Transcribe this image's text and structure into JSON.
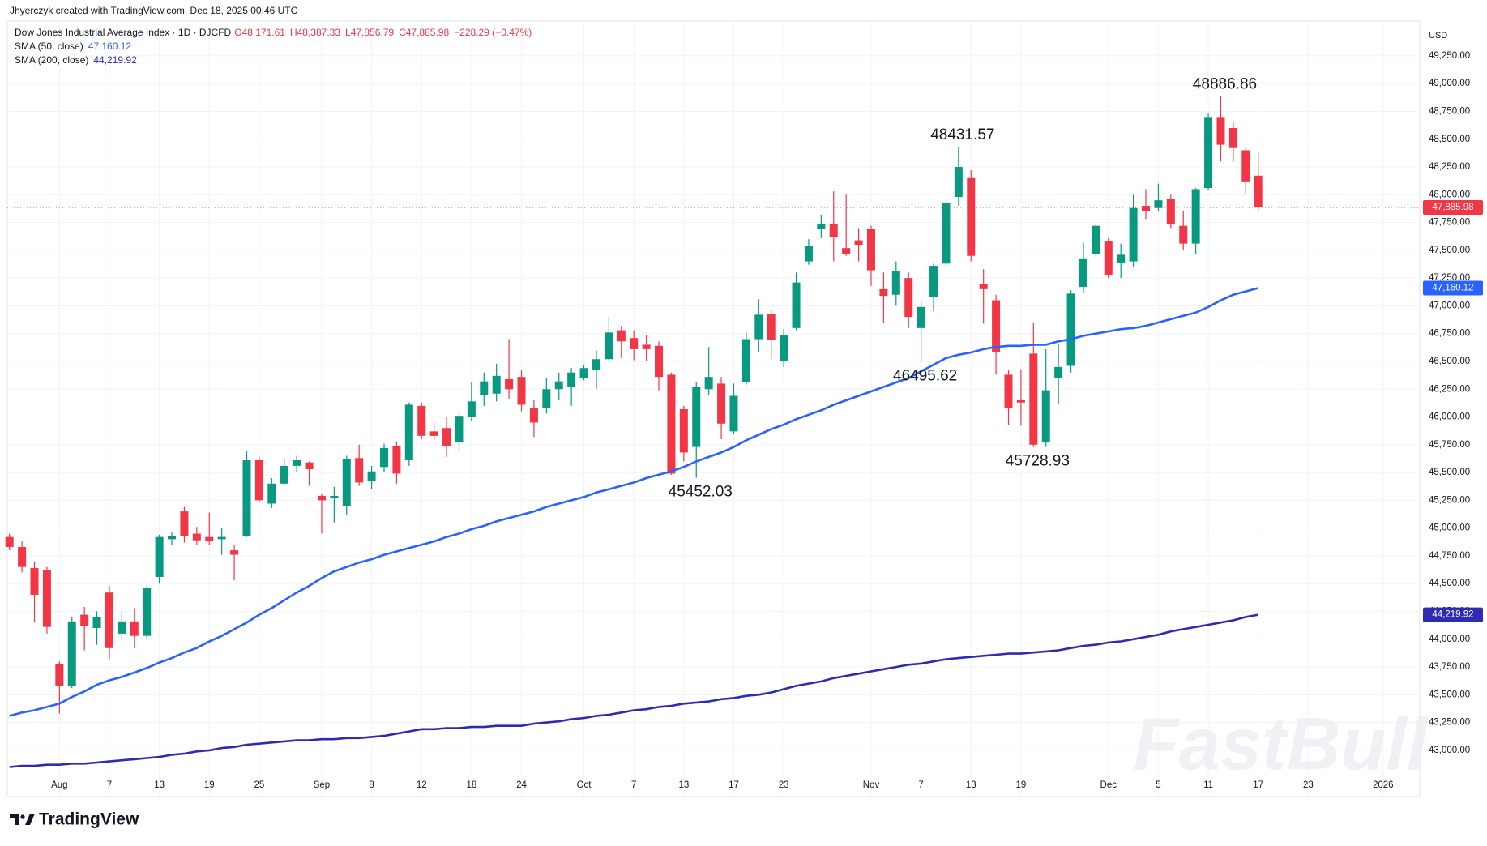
{
  "header": {
    "credit": "Jhyerczyk created with TradingView.com, Dec 18, 2025 00:46 UTC",
    "symbol": "Dow Jones Industrial Average Index · 1D · DJCFD",
    "open": "O48,171.61",
    "high": "H48,387.33",
    "low": "L47,856.79",
    "close": "C47,885.98",
    "change": "−228.29 (−0.47%)"
  },
  "chart_data": {
    "type": "candlestick",
    "currency": "USD",
    "watermark": "FastBull",
    "brand": "TradingView",
    "up_color": "#089981",
    "down_color": "#f23645",
    "grid": true,
    "categories": [
      null,
      null,
      null,
      null,
      "Aug",
      null,
      null,
      null,
      "7",
      null,
      null,
      null,
      "13",
      null,
      null,
      null,
      "19",
      null,
      null,
      null,
      "25",
      null,
      null,
      null,
      null,
      "Sep",
      null,
      null,
      null,
      "8",
      null,
      null,
      null,
      "12",
      null,
      null,
      null,
      "18",
      null,
      null,
      null,
      "24",
      null,
      null,
      null,
      null,
      "Oct",
      null,
      null,
      null,
      "7",
      null,
      null,
      null,
      "13",
      null,
      null,
      null,
      "17",
      null,
      null,
      null,
      "23",
      null,
      null,
      null,
      null,
      null,
      null,
      "Nov",
      null,
      null,
      null,
      "7",
      null,
      null,
      null,
      "13",
      null,
      null,
      null,
      "19",
      null,
      null,
      null,
      null,
      null,
      null,
      "Dec",
      null,
      null,
      null,
      "5",
      null,
      null,
      null,
      "11",
      null,
      null,
      null,
      "17",
      null,
      null,
      null,
      "23",
      null,
      null,
      null,
      null,
      null,
      "2026",
      null,
      null
    ],
    "open": [
      44920,
      44830,
      44640,
      44620,
      43780,
      43580,
      44220,
      44100,
      44420,
      44050,
      44160,
      44030,
      44560,
      44900,
      45150,
      44950,
      44920,
      44900,
      44800,
      44930,
      45610,
      45220,
      45400,
      45560,
      45590,
      45290,
      45270,
      45200,
      45630,
      45420,
      45550,
      45740,
      45610,
      46100,
      45870,
      45900,
      45770,
      46000,
      46200,
      46210,
      46340,
      46360,
      46080,
      46080,
      46250,
      46270,
      46350,
      46420,
      46520,
      46780,
      46710,
      46650,
      46640,
      46380,
      46070,
      45730,
      46250,
      46300,
      45870,
      46310,
      46700,
      46930,
      46500,
      46800,
      47400,
      47690,
      47740,
      47520,
      47590,
      47690,
      47150,
      47100,
      47250,
      46800,
      47080,
      47380,
      47980,
      48150,
      47200,
      47050,
      46380,
      46150,
      46570,
      45770,
      46350,
      46460,
      47170,
      47470,
      47580,
      47390,
      47400,
      47900,
      47880,
      47960,
      47720,
      47560,
      48060,
      48700,
      48600,
      48400,
      48171.61,
      null,
      null,
      null,
      null,
      null,
      null,
      null,
      null,
      null,
      null,
      null,
      null
    ],
    "high": [
      44950,
      44880,
      44700,
      44650,
      43800,
      44200,
      44290,
      44250,
      44480,
      44250,
      44280,
      44480,
      44940,
      44960,
      45190,
      45010,
      45140,
      45000,
      44850,
      45690,
      45640,
      45450,
      45620,
      45650,
      45600,
      45310,
      45370,
      45650,
      45750,
      45560,
      45760,
      45780,
      46130,
      46130,
      45950,
      46000,
      46060,
      46310,
      46400,
      46480,
      46700,
      46420,
      46150,
      46350,
      46400,
      46440,
      46470,
      46600,
      46900,
      46820,
      46780,
      46740,
      46680,
      46400,
      46100,
      46310,
      46630,
      46360,
      46300,
      46760,
      47060,
      46960,
      46790,
      47300,
      47600,
      47820,
      48030,
      48000,
      47700,
      47720,
      47300,
      47400,
      47300,
      47050,
      47380,
      47960,
      48431.57,
      48220,
      47330,
      47100,
      46420,
      46430,
      46850,
      46610,
      46660,
      47140,
      47570,
      47730,
      47610,
      47560,
      48000,
      48050,
      48100,
      48000,
      47850,
      48060,
      48730,
      48886.86,
      48650,
      48420,
      48387.33,
      null,
      null,
      null,
      null,
      null,
      null,
      null,
      null,
      null,
      null,
      null,
      null
    ],
    "low": [
      44800,
      44600,
      44150,
      44050,
      43330,
      43560,
      43900,
      43950,
      43820,
      44000,
      43920,
      44000,
      44500,
      44850,
      44870,
      44850,
      44850,
      44760,
      44530,
      44920,
      45230,
      45180,
      45380,
      45500,
      45380,
      44950,
      45050,
      45120,
      45380,
      45350,
      45500,
      45400,
      45560,
      45800,
      45790,
      45640,
      45680,
      45960,
      46100,
      46140,
      46160,
      46050,
      45820,
      46030,
      46150,
      46100,
      46330,
      46250,
      46500,
      46530,
      46510,
      46500,
      46240,
      45480,
      45600,
      45452.03,
      46200,
      45800,
      45850,
      46290,
      46580,
      46520,
      46450,
      46780,
      47370,
      47610,
      47400,
      47450,
      47400,
      47180,
      46850,
      47000,
      46800,
      46495.62,
      46950,
      47350,
      47900,
      47400,
      46840,
      46380,
      45930,
      45920,
      45728.93,
      45730,
      46120,
      46400,
      47120,
      47440,
      47250,
      47250,
      47350,
      47780,
      47850,
      47700,
      47500,
      47470,
      48040,
      48300,
      48300,
      48000,
      47856.79,
      null,
      null,
      null,
      null,
      null,
      null,
      null,
      null,
      null,
      null,
      null,
      null
    ],
    "close": [
      44830,
      44650,
      44400,
      44110,
      43580,
      44160,
      44120,
      44200,
      43920,
      44160,
      44030,
      44460,
      44920,
      44930,
      44930,
      44890,
      44880,
      44920,
      44760,
      45610,
      45250,
      45400,
      45560,
      45610,
      45530,
      45250,
      45290,
      45620,
      45410,
      45510,
      45720,
      45490,
      46110,
      45830,
      45830,
      45740,
      46010,
      46140,
      46320,
      46370,
      46250,
      46110,
      45950,
      46250,
      46320,
      46400,
      46440,
      46520,
      46760,
      46680,
      46610,
      46610,
      46360,
      45490,
      45680,
      46270,
      46360,
      45940,
      46190,
      46700,
      46920,
      46690,
      46740,
      47210,
      47540,
      47740,
      47620,
      47470,
      47550,
      47320,
      47090,
      47310,
      46900,
      46990,
      47360,
      47930,
      48250,
      47450,
      47150,
      46580,
      46080,
      46130,
      45750,
      46240,
      46450,
      47110,
      47420,
      47720,
      47280,
      47460,
      47880,
      47850,
      47950,
      47740,
      47560,
      48050,
      48700,
      48450,
      48420,
      48120,
      47885.98,
      null,
      null,
      null,
      null,
      null,
      null,
      null,
      null,
      null,
      null,
      null,
      null
    ],
    "last_price_label": "47,885.98",
    "lines": [
      {
        "name": "SMA (50, close)",
        "color": "#2962ff",
        "last_label": "47,160.12",
        "values": [
          43310,
          43340,
          43360,
          43390,
          43420,
          43480,
          43530,
          43590,
          43630,
          43660,
          43700,
          43740,
          43790,
          43830,
          43880,
          43920,
          43980,
          44030,
          44090,
          44150,
          44220,
          44280,
          44350,
          44420,
          44480,
          44550,
          44610,
          44650,
          44690,
          44720,
          44760,
          44790,
          44820,
          44850,
          44880,
          44920,
          44950,
          44990,
          45020,
          45060,
          45090,
          45120,
          45150,
          45190,
          45220,
          45250,
          45280,
          45320,
          45350,
          45380,
          45410,
          45450,
          45480,
          45510,
          45550,
          45600,
          45640,
          45680,
          45730,
          45790,
          45840,
          45890,
          45930,
          45980,
          46020,
          46060,
          46110,
          46150,
          46190,
          46230,
          46270,
          46310,
          46350,
          46410,
          46470,
          46530,
          46560,
          46580,
          46610,
          46630,
          46640,
          46640,
          46650,
          46650,
          46680,
          46700,
          46730,
          46750,
          46770,
          46790,
          46800,
          46820,
          46850,
          46880,
          46910,
          46940,
          46990,
          47050,
          47100,
          47130,
          47160.12,
          null,
          null,
          null,
          null,
          null,
          null,
          null,
          null,
          null,
          null,
          null,
          null
        ]
      },
      {
        "name": "SMA (200, close)",
        "color": "#2e2bb0",
        "last_label": "44,219.92",
        "values": [
          42850,
          42860,
          42860,
          42870,
          42870,
          42880,
          42880,
          42890,
          42900,
          42910,
          42920,
          42930,
          42940,
          42960,
          42970,
          42990,
          43000,
          43020,
          43030,
          43050,
          43060,
          43070,
          43080,
          43090,
          43090,
          43100,
          43100,
          43110,
          43110,
          43120,
          43130,
          43150,
          43170,
          43190,
          43190,
          43200,
          43200,
          43210,
          43210,
          43220,
          43220,
          43220,
          43240,
          43250,
          43260,
          43280,
          43290,
          43310,
          43320,
          43340,
          43360,
          43370,
          43390,
          43400,
          43420,
          43430,
          43440,
          43460,
          43470,
          43490,
          43500,
          43520,
          43550,
          43580,
          43600,
          43620,
          43650,
          43670,
          43690,
          43710,
          43730,
          43750,
          43770,
          43780,
          43800,
          43820,
          43830,
          43840,
          43850,
          43860,
          43870,
          43870,
          43880,
          43890,
          43900,
          43920,
          43940,
          43950,
          43970,
          43980,
          44000,
          44020,
          44040,
          44070,
          44090,
          44110,
          44130,
          44150,
          44170,
          44200,
          44219.92,
          null,
          null,
          null,
          null,
          null,
          null,
          null,
          null,
          null,
          null,
          null,
          null
        ]
      }
    ],
    "annotations": [
      48886.86,
      48431.57,
      46495.62,
      45728.93,
      45452.03
    ],
    "ylim": [
      42795,
      49563
    ],
    "yticks": [
      {
        "value": 43000,
        "label": "43,000.00"
      },
      {
        "value": 43250,
        "label": "43,250.00"
      },
      {
        "value": 43500,
        "label": "43,500.00"
      },
      {
        "value": 43750,
        "label": "43,750.00"
      },
      {
        "value": 44000,
        "label": "44,000.00"
      },
      {
        "value": 44250,
        "label": "44,250.00"
      },
      {
        "value": 44500,
        "label": "44,500.00"
      },
      {
        "value": 44750,
        "label": "44,750.00"
      },
      {
        "value": 45000,
        "label": "45,000.00"
      },
      {
        "value": 45250,
        "label": "45,250.00"
      },
      {
        "value": 45500,
        "label": "45,500.00"
      },
      {
        "value": 45750,
        "label": "45,750.00"
      },
      {
        "value": 46000,
        "label": "46,000.00"
      },
      {
        "value": 46250,
        "label": "46,250.00"
      },
      {
        "value": 46500,
        "label": "46,500.00"
      },
      {
        "value": 46750,
        "label": "46,750.00"
      },
      {
        "value": 47000,
        "label": "47,000.00"
      },
      {
        "value": 47250,
        "label": "47,250.00"
      },
      {
        "value": 47500,
        "label": "47,500.00"
      },
      {
        "value": 47750,
        "label": "47,750.00"
      },
      {
        "value": 48000,
        "label": "48,000.00"
      },
      {
        "value": 48250,
        "label": "48,250.00"
      },
      {
        "value": 48500,
        "label": "48,500.00"
      },
      {
        "value": 48750,
        "label": "48,750.00"
      },
      {
        "value": 49000,
        "label": "49,000.00"
      },
      {
        "value": 49250,
        "label": "49,250.00"
      }
    ]
  }
}
